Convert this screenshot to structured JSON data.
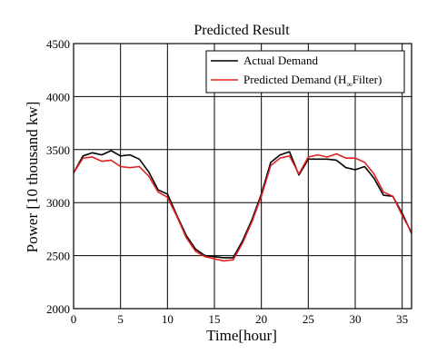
{
  "chart_data": {
    "type": "line",
    "title": "Predicted Result",
    "xlabel": "Time[hour]",
    "ylabel": "Power [10 thousand kw]",
    "xlim": [
      0,
      36
    ],
    "ylim": [
      2000,
      4500
    ],
    "xticks": [
      "0",
      "5",
      "10",
      "15",
      "20",
      "25",
      "30",
      "35"
    ],
    "yticks": [
      "2000",
      "2500",
      "3000",
      "3500",
      "4000",
      "4500"
    ],
    "grid": true,
    "legend_position": "top-right",
    "x": [
      0,
      1,
      2,
      3,
      4,
      5,
      6,
      7,
      8,
      9,
      10,
      11,
      12,
      13,
      14,
      15,
      16,
      17,
      18,
      19,
      20,
      21,
      22,
      23,
      24,
      25,
      26,
      27,
      28,
      29,
      30,
      31,
      32,
      33,
      34,
      35,
      36
    ],
    "series": [
      {
        "name": "Actual Demand",
        "color": "#000000",
        "values": [
          3280,
          3440,
          3470,
          3450,
          3490,
          3440,
          3450,
          3410,
          3290,
          3120,
          3080,
          2880,
          2690,
          2560,
          2500,
          2490,
          2480,
          2480,
          2640,
          2840,
          3080,
          3380,
          3450,
          3480,
          3260,
          3410,
          3410,
          3410,
          3400,
          3330,
          3310,
          3340,
          3230,
          3070,
          3060,
          2900,
          2710
        ]
      },
      {
        "name": "Predicted Demand (H∞ Filter)",
        "name_main": "Predicted Demand (H",
        "name_sub": "∞",
        "name_tail": "Filter)",
        "color": "#e02020",
        "values": [
          3280,
          3420,
          3430,
          3390,
          3400,
          3340,
          3330,
          3340,
          3250,
          3100,
          3050,
          2870,
          2670,
          2540,
          2490,
          2470,
          2450,
          2460,
          2620,
          2820,
          3060,
          3350,
          3420,
          3440,
          3270,
          3430,
          3450,
          3430,
          3460,
          3420,
          3420,
          3380,
          3270,
          3100,
          3060,
          2880,
          2720
        ]
      }
    ]
  }
}
